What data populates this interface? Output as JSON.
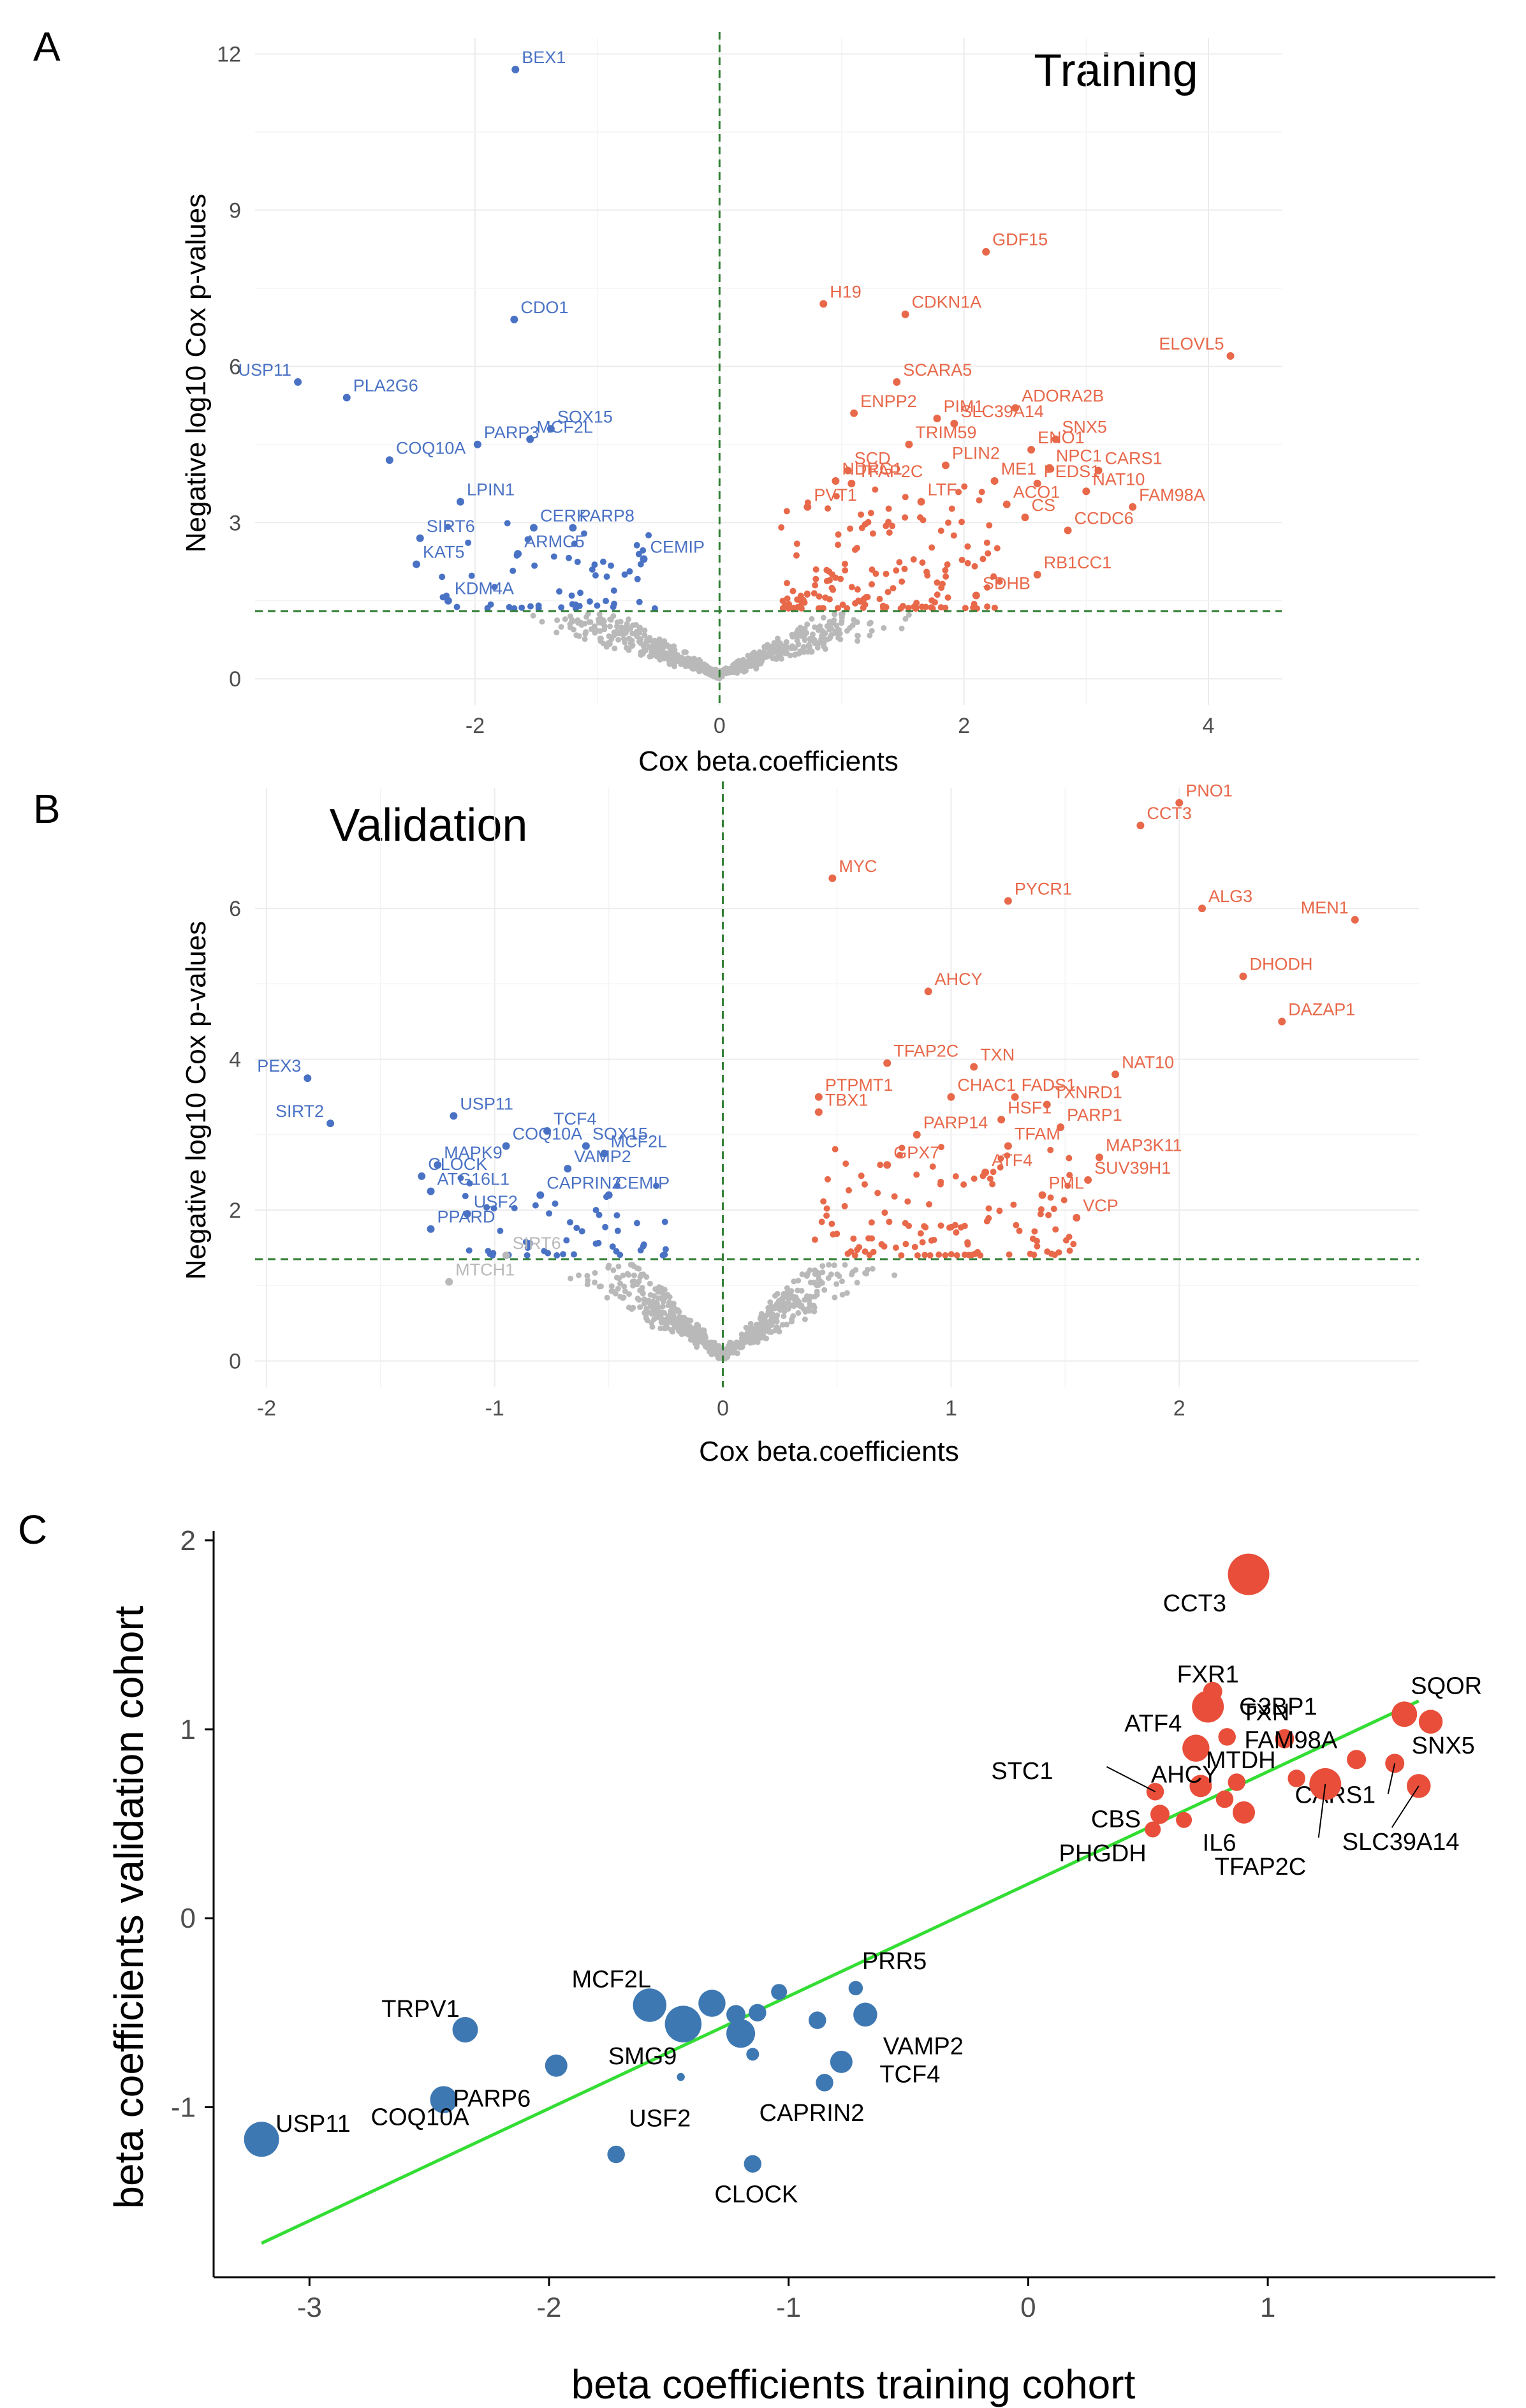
{
  "colors": {
    "up": "#e8684a",
    "down": "#4a72c4",
    "ns": "#b9b9b9",
    "pc_up": "#e84e3a",
    "pc_down": "#3e78b2",
    "fit": "#33dd33",
    "thresh": "#2e7d32"
  },
  "panels": {
    "a": "A",
    "b": "B",
    "c": "C"
  },
  "chart_data": [
    {
      "id": "a",
      "type": "scatter",
      "title": "Training",
      "xlabel": "Cox beta.coefficients",
      "ylabel": "Negative log10 Cox p-values",
      "xlim": [
        -3.8,
        4.6
      ],
      "ylim": [
        -0.5,
        12.3
      ],
      "xticks": [
        -2,
        0,
        2,
        4
      ],
      "yticks": [
        0,
        3,
        6,
        9,
        12
      ],
      "threshold_y": 1.3,
      "vline_x": 0,
      "grid": true,
      "labeled_points": [
        {
          "name": "BEX1",
          "x": -1.67,
          "y": 11.7,
          "dir": "down"
        },
        {
          "name": "CDO1",
          "x": -1.68,
          "y": 6.9,
          "dir": "down"
        },
        {
          "name": "USP11",
          "x": -3.45,
          "y": 5.7,
          "dir": "down"
        },
        {
          "name": "PLA2G6",
          "x": -3.05,
          "y": 5.4,
          "dir": "down"
        },
        {
          "name": "PARP3",
          "x": -1.98,
          "y": 4.5,
          "dir": "down"
        },
        {
          "name": "SOX15",
          "x": -1.38,
          "y": 4.8,
          "dir": "down"
        },
        {
          "name": "MCF2L",
          "x": -1.55,
          "y": 4.6,
          "dir": "down"
        },
        {
          "name": "COQ10A",
          "x": -2.7,
          "y": 4.2,
          "dir": "down"
        },
        {
          "name": "LPIN1",
          "x": -2.12,
          "y": 3.4,
          "dir": "down"
        },
        {
          "name": "PARP8",
          "x": -1.2,
          "y": 2.9,
          "dir": "down"
        },
        {
          "name": "SIRT6",
          "x": -2.45,
          "y": 2.7,
          "dir": "down"
        },
        {
          "name": "CERK",
          "x": -1.52,
          "y": 2.9,
          "dir": "down"
        },
        {
          "name": "CEMIP",
          "x": -0.62,
          "y": 2.3,
          "dir": "down"
        },
        {
          "name": "ARMC5",
          "x": -1.65,
          "y": 2.4,
          "dir": "down"
        },
        {
          "name": "KAT5",
          "x": -2.48,
          "y": 2.2,
          "dir": "down"
        },
        {
          "name": "KDM4A",
          "x": -2.22,
          "y": 1.5,
          "dir": "down"
        },
        {
          "name": "GDF15",
          "x": 2.18,
          "y": 8.2,
          "dir": "up"
        },
        {
          "name": "H19",
          "x": 0.85,
          "y": 7.2,
          "dir": "up"
        },
        {
          "name": "CDKN1A",
          "x": 1.52,
          "y": 7.0,
          "dir": "up"
        },
        {
          "name": "ELOVL5",
          "x": 4.18,
          "y": 6.2,
          "dir": "up"
        },
        {
          "name": "SCARA5",
          "x": 1.45,
          "y": 5.7,
          "dir": "up"
        },
        {
          "name": "ADORA2B",
          "x": 2.42,
          "y": 5.2,
          "dir": "up"
        },
        {
          "name": "ENPP2",
          "x": 1.1,
          "y": 5.1,
          "dir": "up"
        },
        {
          "name": "PIM1",
          "x": 1.78,
          "y": 5.0,
          "dir": "up"
        },
        {
          "name": "SLC39A14",
          "x": 1.92,
          "y": 4.9,
          "dir": "up"
        },
        {
          "name": "TRIM59",
          "x": 1.55,
          "y": 4.5,
          "dir": "up"
        },
        {
          "name": "SNX5",
          "x": 2.75,
          "y": 4.6,
          "dir": "up"
        },
        {
          "name": "ENO1",
          "x": 2.55,
          "y": 4.4,
          "dir": "up"
        },
        {
          "name": "SCD",
          "x": 1.05,
          "y": 4.0,
          "dir": "up"
        },
        {
          "name": "PLIN2",
          "x": 1.85,
          "y": 4.1,
          "dir": "up"
        },
        {
          "name": "NPC1",
          "x": 2.7,
          "y": 4.05,
          "dir": "up"
        },
        {
          "name": "CARS1",
          "x": 3.1,
          "y": 4.0,
          "dir": "up"
        },
        {
          "name": "NDRG1",
          "x": 0.95,
          "y": 3.8,
          "dir": "up"
        },
        {
          "name": "TFAP2C",
          "x": 1.08,
          "y": 3.75,
          "dir": "up"
        },
        {
          "name": "ME1",
          "x": 2.25,
          "y": 3.8,
          "dir": "up"
        },
        {
          "name": "PEDS1",
          "x": 2.6,
          "y": 3.75,
          "dir": "up"
        },
        {
          "name": "NAT10",
          "x": 3.0,
          "y": 3.6,
          "dir": "up"
        },
        {
          "name": "PVT1",
          "x": 0.72,
          "y": 3.3,
          "dir": "up"
        },
        {
          "name": "LTF",
          "x": 1.65,
          "y": 3.4,
          "dir": "up"
        },
        {
          "name": "ACO1",
          "x": 2.35,
          "y": 3.35,
          "dir": "up"
        },
        {
          "name": "FAM98A",
          "x": 3.38,
          "y": 3.3,
          "dir": "up"
        },
        {
          "name": "CS",
          "x": 2.5,
          "y": 3.1,
          "dir": "up"
        },
        {
          "name": "CCDC6",
          "x": 2.85,
          "y": 2.85,
          "dir": "up"
        },
        {
          "name": "RB1CC1",
          "x": 2.6,
          "y": 2.0,
          "dir": "up"
        },
        {
          "name": "SDHB",
          "x": 2.1,
          "y": 1.6,
          "dir": "up"
        }
      ]
    },
    {
      "id": "b",
      "type": "scatter",
      "title": "Validation",
      "xlabel": "Cox beta.coefficients",
      "ylabel": "Negative log10 Cox p-values",
      "xlim": [
        -2.05,
        3.05
      ],
      "ylim": [
        -0.35,
        7.6
      ],
      "xticks": [
        -2,
        -1,
        0,
        1,
        2
      ],
      "yticks": [
        0,
        2,
        4,
        6
      ],
      "threshold_y": 1.35,
      "vline_x": 0,
      "grid": true,
      "labeled_points": [
        {
          "name": "PNO1",
          "x": 2.0,
          "y": 7.4,
          "dir": "up"
        },
        {
          "name": "CCT3",
          "x": 1.83,
          "y": 7.1,
          "dir": "up"
        },
        {
          "name": "MYC",
          "x": 0.48,
          "y": 6.4,
          "dir": "up"
        },
        {
          "name": "PYCR1",
          "x": 1.25,
          "y": 6.1,
          "dir": "up"
        },
        {
          "name": "ALG3",
          "x": 2.1,
          "y": 6.0,
          "dir": "up"
        },
        {
          "name": "MEN1",
          "x": 2.77,
          "y": 5.85,
          "dir": "up"
        },
        {
          "name": "DHODH",
          "x": 2.28,
          "y": 5.1,
          "dir": "up"
        },
        {
          "name": "AHCY",
          "x": 0.9,
          "y": 4.9,
          "dir": "up"
        },
        {
          "name": "DAZAP1",
          "x": 2.45,
          "y": 4.5,
          "dir": "up"
        },
        {
          "name": "TFAP2C",
          "x": 0.72,
          "y": 3.95,
          "dir": "up"
        },
        {
          "name": "TXN",
          "x": 1.1,
          "y": 3.9,
          "dir": "up"
        },
        {
          "name": "NAT10",
          "x": 1.72,
          "y": 3.8,
          "dir": "up"
        },
        {
          "name": "PTPMT1",
          "x": 0.42,
          "y": 3.5,
          "dir": "up"
        },
        {
          "name": "FADS1",
          "x": 1.28,
          "y": 3.5,
          "dir": "up"
        },
        {
          "name": "TXNRD1",
          "x": 1.42,
          "y": 3.4,
          "dir": "up"
        },
        {
          "name": "CHAC1",
          "x": 1.0,
          "y": 3.5,
          "dir": "up"
        },
        {
          "name": "TBX1",
          "x": 0.42,
          "y": 3.3,
          "dir": "up"
        },
        {
          "name": "HSF1",
          "x": 1.22,
          "y": 3.2,
          "dir": "up"
        },
        {
          "name": "PARP1",
          "x": 1.48,
          "y": 3.1,
          "dir": "up"
        },
        {
          "name": "PARP14",
          "x": 0.85,
          "y": 3.0,
          "dir": "up"
        },
        {
          "name": "TFAM",
          "x": 1.25,
          "y": 2.85,
          "dir": "up"
        },
        {
          "name": "MAP3K11",
          "x": 1.65,
          "y": 2.7,
          "dir": "up"
        },
        {
          "name": "GPX7",
          "x": 0.72,
          "y": 2.6,
          "dir": "up"
        },
        {
          "name": "ATF4",
          "x": 1.15,
          "y": 2.5,
          "dir": "up"
        },
        {
          "name": "SUV39H1",
          "x": 1.6,
          "y": 2.4,
          "dir": "up"
        },
        {
          "name": "PML",
          "x": 1.4,
          "y": 2.2,
          "dir": "up"
        },
        {
          "name": "VCP",
          "x": 1.55,
          "y": 1.9,
          "dir": "up"
        },
        {
          "name": "PEX3",
          "x": -1.82,
          "y": 3.75,
          "dir": "down"
        },
        {
          "name": "USP11",
          "x": -1.18,
          "y": 3.25,
          "dir": "down"
        },
        {
          "name": "SIRT2",
          "x": -1.72,
          "y": 3.15,
          "dir": "down"
        },
        {
          "name": "TCF4",
          "x": -0.77,
          "y": 3.05,
          "dir": "down"
        },
        {
          "name": "COQ10A",
          "x": -0.95,
          "y": 2.85,
          "dir": "down"
        },
        {
          "name": "SOX15",
          "x": -0.6,
          "y": 2.85,
          "dir": "down"
        },
        {
          "name": "MCF2L",
          "x": -0.52,
          "y": 2.75,
          "dir": "down"
        },
        {
          "name": "VAMP2",
          "x": -0.68,
          "y": 2.55,
          "dir": "down"
        },
        {
          "name": "MAPK9",
          "x": -1.25,
          "y": 2.6,
          "dir": "down"
        },
        {
          "name": "CLOCK",
          "x": -1.32,
          "y": 2.45,
          "dir": "down"
        },
        {
          "name": "CAPRIN2",
          "x": -0.8,
          "y": 2.2,
          "dir": "down"
        },
        {
          "name": "CEMIP",
          "x": -0.5,
          "y": 2.2,
          "dir": "down"
        },
        {
          "name": "ATG16L1",
          "x": -1.28,
          "y": 2.25,
          "dir": "down"
        },
        {
          "name": "USF2",
          "x": -1.12,
          "y": 1.95,
          "dir": "down"
        },
        {
          "name": "PPARD",
          "x": -1.28,
          "y": 1.75,
          "dir": "down"
        },
        {
          "name": "SIRT6",
          "x": -0.95,
          "y": 1.4,
          "dir": "ns"
        },
        {
          "name": "MTCH1",
          "x": -1.2,
          "y": 1.05,
          "dir": "ns"
        }
      ]
    },
    {
      "id": "c",
      "type": "scatter",
      "title": "",
      "xlabel": "beta coefficients training cohort",
      "ylabel": "beta coefficients validation cohort",
      "xlim": [
        -3.4,
        1.95
      ],
      "ylim": [
        -1.9,
        2.05
      ],
      "xticks": [
        -3,
        -2,
        -1,
        0,
        1
      ],
      "yticks": [
        -1,
        0,
        1,
        2
      ],
      "fit_line": [
        [
          -3.2,
          -1.72
        ],
        [
          1.63,
          1.15
        ]
      ],
      "grid": false,
      "points": [
        {
          "name": "CCT3",
          "x": 0.92,
          "y": 1.82,
          "size": 26,
          "dir": "up"
        },
        {
          "name": "FXR1",
          "x": 0.75,
          "y": 1.12,
          "size": 20,
          "dir": "up"
        },
        {
          "name": "",
          "x": 0.77,
          "y": 1.2,
          "size": 12,
          "dir": "up"
        },
        {
          "name": "ATF4",
          "x": 0.7,
          "y": 0.9,
          "size": 17,
          "dir": "up"
        },
        {
          "name": "TXN",
          "x": 0.83,
          "y": 0.96,
          "size": 11,
          "dir": "up"
        },
        {
          "name": "G3BP1",
          "x": 1.07,
          "y": 0.95,
          "size": 12,
          "dir": "up"
        },
        {
          "name": "SQOR",
          "x": 1.57,
          "y": 1.08,
          "size": 16,
          "dir": "up"
        },
        {
          "name": "SNX5",
          "x": 1.68,
          "y": 1.04,
          "size": 15,
          "dir": "up"
        },
        {
          "name": "FAM98A",
          "x": 1.37,
          "y": 0.84,
          "size": 12,
          "dir": "up"
        },
        {
          "name": "CARS1",
          "x": 1.53,
          "y": 0.82,
          "size": 12,
          "dir": "up"
        },
        {
          "name": "MTDH",
          "x": 0.72,
          "y": 0.7,
          "size": 14,
          "dir": "up"
        },
        {
          "name": "",
          "x": 0.87,
          "y": 0.72,
          "size": 11,
          "dir": "up"
        },
        {
          "name": "TFAP2C",
          "x": 1.24,
          "y": 0.71,
          "size": 20,
          "dir": "up"
        },
        {
          "name": "",
          "x": 1.12,
          "y": 0.74,
          "size": 11,
          "dir": "up"
        },
        {
          "name": "SLC39A14",
          "x": 1.63,
          "y": 0.7,
          "size": 15,
          "dir": "up"
        },
        {
          "name": "STC1",
          "x": 0.53,
          "y": 0.67,
          "size": 11,
          "dir": "up"
        },
        {
          "name": "AHCY",
          "x": 0.82,
          "y": 0.63,
          "size": 11,
          "dir": "up"
        },
        {
          "name": "CBS",
          "x": 0.55,
          "y": 0.55,
          "size": 12,
          "dir": "up"
        },
        {
          "name": "",
          "x": 0.65,
          "y": 0.52,
          "size": 10,
          "dir": "up"
        },
        {
          "name": "IL6",
          "x": 0.9,
          "y": 0.56,
          "size": 14,
          "dir": "up"
        },
        {
          "name": "PHGDH",
          "x": 0.52,
          "y": 0.47,
          "size": 10,
          "dir": "up"
        },
        {
          "name": "USP11",
          "x": -3.2,
          "y": -1.17,
          "size": 22,
          "dir": "down"
        },
        {
          "name": "COQ10A",
          "x": -2.44,
          "y": -0.96,
          "size": 17,
          "dir": "down"
        },
        {
          "name": "PARP6",
          "x": -1.97,
          "y": -0.78,
          "size": 14,
          "dir": "down"
        },
        {
          "name": "TRPV1",
          "x": -2.35,
          "y": -0.59,
          "size": 16,
          "dir": "down"
        },
        {
          "name": "MCF2L",
          "x": -1.58,
          "y": -0.46,
          "size": 21,
          "dir": "down"
        },
        {
          "name": "",
          "x": -1.44,
          "y": -0.56,
          "size": 23,
          "dir": "down"
        },
        {
          "name": "",
          "x": -1.32,
          "y": -0.45,
          "size": 17,
          "dir": "down"
        },
        {
          "name": "",
          "x": -1.2,
          "y": -0.61,
          "size": 18,
          "dir": "down"
        },
        {
          "name": "",
          "x": -1.22,
          "y": -0.51,
          "size": 12,
          "dir": "down"
        },
        {
          "name": "",
          "x": -1.13,
          "y": -0.5,
          "size": 11,
          "dir": "down"
        },
        {
          "name": "",
          "x": -1.04,
          "y": -0.39,
          "size": 10,
          "dir": "down"
        },
        {
          "name": "",
          "x": -1.15,
          "y": -0.72,
          "size": 8,
          "dir": "down"
        },
        {
          "name": "SMG9",
          "x": -1.45,
          "y": -0.84,
          "size": 5,
          "dir": "down"
        },
        {
          "name": "USF2",
          "x": -1.72,
          "y": -1.25,
          "size": 11,
          "dir": "down"
        },
        {
          "name": "CLOCK",
          "x": -1.15,
          "y": -1.3,
          "size": 11,
          "dir": "down"
        },
        {
          "name": "CAPRIN2",
          "x": -0.85,
          "y": -0.87,
          "size": 11,
          "dir": "down"
        },
        {
          "name": "TCF4",
          "x": -0.78,
          "y": -0.76,
          "size": 14,
          "dir": "down"
        },
        {
          "name": "VAMP2",
          "x": -0.68,
          "y": -0.51,
          "size": 15,
          "dir": "down"
        },
        {
          "name": "PRR5",
          "x": -0.72,
          "y": -0.37,
          "size": 9,
          "dir": "down"
        },
        {
          "name": "",
          "x": -0.88,
          "y": -0.54,
          "size": 11,
          "dir": "down"
        }
      ]
    }
  ]
}
